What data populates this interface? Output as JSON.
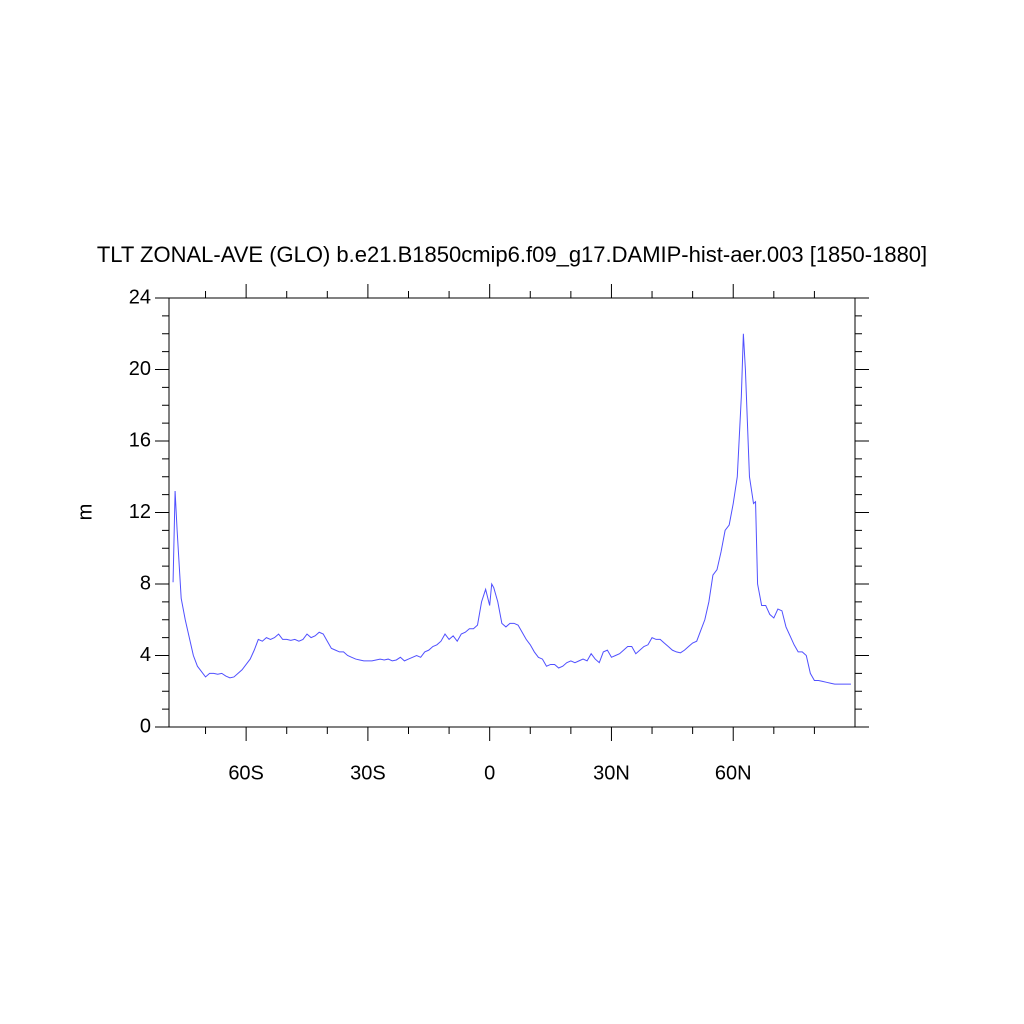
{
  "chart_data": {
    "type": "line",
    "title": "TLT ZONAL-AVE (GLO) b.e21.B1850cmip6.f09_g17.DAMIP-hist-aer.003 [1850-1880]",
    "ylabel": "m",
    "color": "#5050ff",
    "xlim": [
      -79,
      90
    ],
    "ylim": [
      0,
      24
    ],
    "xticks": [
      {
        "value": -60,
        "label": "60S"
      },
      {
        "value": -30,
        "label": "30S"
      },
      0,
      {
        "value": 30,
        "label": "30N"
      },
      {
        "value": 60,
        "label": "60N"
      }
    ],
    "xminorticks": [
      -70,
      -50,
      -40,
      -20,
      -10,
      10,
      20,
      40,
      50,
      70,
      80
    ],
    "yticks": [
      0,
      4,
      8,
      12,
      16,
      20,
      24
    ],
    "yminorticks": [
      1,
      2,
      3,
      5,
      6,
      7,
      9,
      10,
      11,
      13,
      14,
      15,
      17,
      18,
      19,
      21,
      22,
      23
    ],
    "x": [
      -78,
      -77.5,
      -77,
      -76,
      -75,
      -74,
      -73,
      -72,
      -71,
      -70,
      -69,
      -68,
      -67,
      -66,
      -65,
      -64,
      -63,
      -62,
      -61,
      -60,
      -59,
      -58,
      -57,
      -56,
      -55,
      -54,
      -53,
      -52,
      -51,
      -50,
      -49,
      -48,
      -47,
      -46,
      -45,
      -44,
      -43,
      -42,
      -41,
      -40,
      -39,
      -38,
      -37,
      -36,
      -35,
      -34,
      -33,
      -32,
      -31,
      -30,
      -29,
      -28,
      -27,
      -26,
      -25,
      -24,
      -23,
      -22,
      -21,
      -20,
      -19,
      -18,
      -17,
      -16,
      -15,
      -14,
      -13,
      -12,
      -11,
      -10,
      -9,
      -8,
      -7,
      -6,
      -5,
      -4,
      -3,
      -2,
      -1,
      0,
      0.5,
      1,
      2,
      3,
      4,
      5,
      6,
      7,
      8,
      9,
      10,
      11,
      12,
      13,
      14,
      15,
      16,
      17,
      18,
      19,
      20,
      21,
      22,
      23,
      24,
      25,
      26,
      27,
      28,
      29,
      30,
      31,
      32,
      33,
      34,
      35,
      36,
      37,
      38,
      39,
      40,
      41,
      42,
      43,
      44,
      45,
      46,
      47,
      48,
      49,
      50,
      51,
      52,
      53,
      54,
      55,
      56,
      57,
      58,
      59,
      60,
      61,
      62,
      62.5,
      63,
      64,
      65,
      65.5,
      66,
      67,
      68,
      69,
      70,
      71,
      72,
      73,
      74,
      75,
      76,
      77,
      78,
      79,
      80,
      81,
      82,
      83,
      84,
      85,
      86,
      87,
      88,
      89
    ],
    "values": [
      8.1,
      13.2,
      11,
      7.2,
      6,
      5,
      4,
      3.4,
      3.1,
      2.8,
      3.0,
      3.0,
      2.95,
      3.0,
      2.85,
      2.75,
      2.8,
      3.0,
      3.2,
      3.5,
      3.8,
      4.3,
      4.9,
      4.8,
      5.0,
      4.9,
      5.0,
      5.2,
      4.9,
      4.9,
      4.85,
      4.9,
      4.8,
      4.9,
      5.2,
      5.0,
      5.1,
      5.3,
      5.2,
      4.8,
      4.4,
      4.3,
      4.2,
      4.2,
      4.0,
      3.9,
      3.8,
      3.75,
      3.7,
      3.7,
      3.7,
      3.75,
      3.8,
      3.75,
      3.8,
      3.7,
      3.75,
      3.9,
      3.7,
      3.8,
      3.9,
      4.0,
      3.9,
      4.2,
      4.3,
      4.5,
      4.6,
      4.8,
      5.2,
      4.9,
      5.1,
      4.8,
      5.2,
      5.3,
      5.5,
      5.5,
      5.7,
      7.0,
      7.7,
      6.8,
      8.0,
      7.8,
      7.0,
      5.8,
      5.6,
      5.8,
      5.8,
      5.7,
      5.3,
      4.9,
      4.6,
      4.2,
      3.9,
      3.8,
      3.4,
      3.5,
      3.5,
      3.3,
      3.4,
      3.6,
      3.7,
      3.6,
      3.7,
      3.8,
      3.7,
      4.1,
      3.8,
      3.6,
      4.2,
      4.3,
      3.9,
      4.0,
      4.1,
      4.3,
      4.5,
      4.5,
      4.1,
      4.3,
      4.5,
      4.6,
      5.0,
      4.9,
      4.9,
      4.7,
      4.5,
      4.3,
      4.2,
      4.15,
      4.3,
      4.5,
      4.7,
      4.8,
      5.4,
      6.0,
      7.0,
      8.5,
      8.8,
      9.8,
      11.0,
      11.3,
      12.5,
      14.0,
      18.5,
      22.0,
      20,
      14,
      12.5,
      12.6,
      8.0,
      6.8,
      6.8,
      6.3,
      6.1,
      6.6,
      6.5,
      5.6,
      5.1,
      4.6,
      4.2,
      4.2,
      4.0,
      3.0,
      2.6,
      2.6,
      2.55,
      2.5,
      2.45,
      2.4,
      2.4,
      2.4,
      2.4,
      2.4
    ]
  }
}
